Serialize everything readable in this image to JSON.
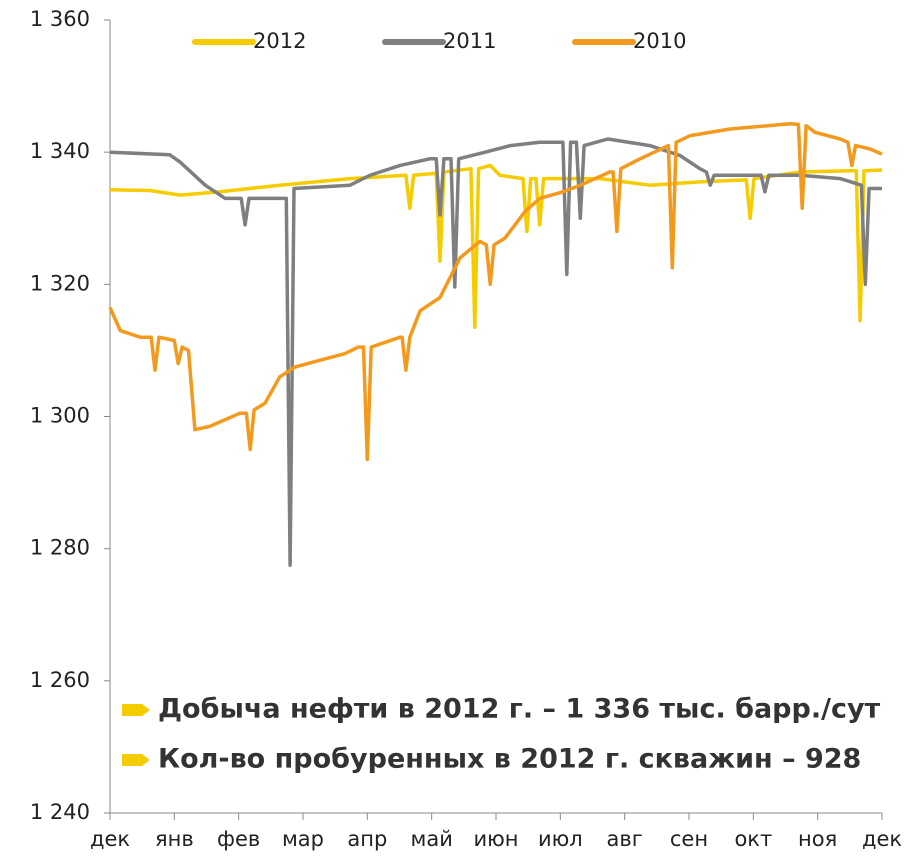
{
  "chart_data": {
    "type": "line",
    "legend": "top",
    "annotations": [
      "Добыча нефти в 2012 г. – 1 336 тыс. барр./сут",
      "Кол-во пробуренных в 2012 г. скважин – 928"
    ],
    "annotation_marker_color": "#f5cc00",
    "xlim": [
      0,
      12
    ],
    "xticks": [
      {
        "value": 0,
        "label": "дек"
      },
      {
        "value": 1,
        "label": "янв"
      },
      {
        "value": 2,
        "label": "фев"
      },
      {
        "value": 3,
        "label": "мар"
      },
      {
        "value": 4,
        "label": "апр"
      },
      {
        "value": 5,
        "label": "май"
      },
      {
        "value": 6,
        "label": "июн"
      },
      {
        "value": 7,
        "label": "июл"
      },
      {
        "value": 8,
        "label": "авг"
      },
      {
        "value": 9,
        "label": "сен"
      },
      {
        "value": 10,
        "label": "окт"
      },
      {
        "value": 11,
        "label": "ноя"
      },
      {
        "value": 12,
        "label": "дек"
      }
    ],
    "ylim": [
      1240,
      1360
    ],
    "yticks": [
      {
        "value": 1240,
        "label": "1 240"
      },
      {
        "value": 1260,
        "label": "1 260"
      },
      {
        "value": 1280,
        "label": "1 280"
      },
      {
        "value": 1300,
        "label": "1 300"
      },
      {
        "value": 1320,
        "label": "1 320"
      },
      {
        "value": 1340,
        "label": "1 340"
      },
      {
        "value": 1360,
        "label": "1 360"
      }
    ],
    "series": [
      {
        "name": "2012",
        "color": "#f5cc00",
        "x": [
          0,
          0.62,
          1.09,
          1.71,
          2.64,
          3.73,
          4.6,
          4.66,
          4.72,
          5.07,
          5.13,
          5.19,
          5.61,
          5.67,
          5.73,
          5.91,
          6.06,
          6.42,
          6.48,
          6.54,
          6.62,
          6.68,
          6.74,
          7.62,
          8.39,
          9.17,
          9.89,
          9.95,
          10.01,
          10.73,
          11.5,
          11.6,
          11.66,
          11.72,
          12
        ],
        "values": [
          1334.3,
          1334.2,
          1333.5,
          1334,
          1335,
          1336,
          1336.5,
          1331.5,
          1336.5,
          1336.8,
          1323.5,
          1337,
          1337.5,
          1313.5,
          1337.5,
          1338,
          1336.5,
          1336,
          1328,
          1336,
          1336,
          1329,
          1336,
          1336,
          1335,
          1335.5,
          1335.8,
          1330,
          1336,
          1337,
          1337.2,
          1337.2,
          1314.5,
          1337.2,
          1337.3
        ]
      },
      {
        "name": "2011",
        "color": "#7f7f7f",
        "x": [
          0,
          0.93,
          1.09,
          1.48,
          1.79,
          2.04,
          2.1,
          2.16,
          2.64,
          2.74,
          2.8,
          2.86,
          3.73,
          4.04,
          4.51,
          4.97,
          5.07,
          5.13,
          5.19,
          5.3,
          5.36,
          5.42,
          5.83,
          6.22,
          6.68,
          7.04,
          7.1,
          7.16,
          7.25,
          7.31,
          7.37,
          7.74,
          8.39,
          8.86,
          9.17,
          9.27,
          9.33,
          9.39,
          9.79,
          10.12,
          10.18,
          10.24,
          10.73,
          11.35,
          11.68,
          11.74,
          11.8,
          12
        ],
        "values": [
          1340,
          1339.6,
          1338.5,
          1335,
          1333,
          1333,
          1329,
          1333,
          1333,
          1333,
          1277.5,
          1334.5,
          1335,
          1336.5,
          1338,
          1339,
          1339,
          1330.5,
          1339,
          1339,
          1319.6,
          1339,
          1340,
          1341,
          1341.5,
          1341.5,
          1321.5,
          1341.5,
          1341.5,
          1330,
          1341,
          1342,
          1341,
          1339.5,
          1337.5,
          1337,
          1335,
          1336.5,
          1336.5,
          1336.5,
          1334,
          1336.5,
          1336.5,
          1336,
          1335,
          1320,
          1334.5,
          1334.5
        ]
      },
      {
        "name": "2010",
        "color": "#f39a1e",
        "x": [
          0,
          0.16,
          0.47,
          0.64,
          0.7,
          0.76,
          1,
          1.06,
          1.12,
          1.22,
          1.32,
          1.55,
          2.02,
          2.12,
          2.18,
          2.24,
          2.41,
          2.64,
          2.88,
          3.26,
          3.65,
          3.86,
          3.94,
          4,
          4.06,
          4.51,
          4.54,
          4.6,
          4.66,
          4.82,
          5.13,
          5.44,
          5.75,
          5.85,
          5.91,
          5.97,
          6.14,
          6.45,
          6.68,
          7.04,
          7.31,
          7.77,
          7.82,
          7.88,
          7.94,
          8.24,
          8.68,
          8.74,
          8.8,
          9.02,
          9.64,
          10.57,
          10.7,
          10.76,
          10.82,
          10.96,
          11.35,
          11.47,
          11.53,
          11.59,
          11.81,
          12
        ],
        "values": [
          1316.5,
          1313,
          1312,
          1312,
          1307,
          1312,
          1311.5,
          1308,
          1310.5,
          1310,
          1298,
          1298.5,
          1300.5,
          1300.5,
          1295,
          1301,
          1302,
          1306,
          1307.5,
          1308.5,
          1309.5,
          1310.5,
          1310.5,
          1293.5,
          1310.5,
          1312,
          1312,
          1307,
          1312,
          1316,
          1318,
          1324,
          1326.5,
          1326,
          1320,
          1326,
          1327,
          1331,
          1333,
          1334,
          1335,
          1337,
          1337,
          1328,
          1337.5,
          1339,
          1341,
          1322.5,
          1341.5,
          1342.5,
          1343.5,
          1344.3,
          1344.2,
          1331.5,
          1344,
          1343,
          1342,
          1341.5,
          1338,
          1341,
          1340.5,
          1339.7
        ]
      }
    ]
  }
}
